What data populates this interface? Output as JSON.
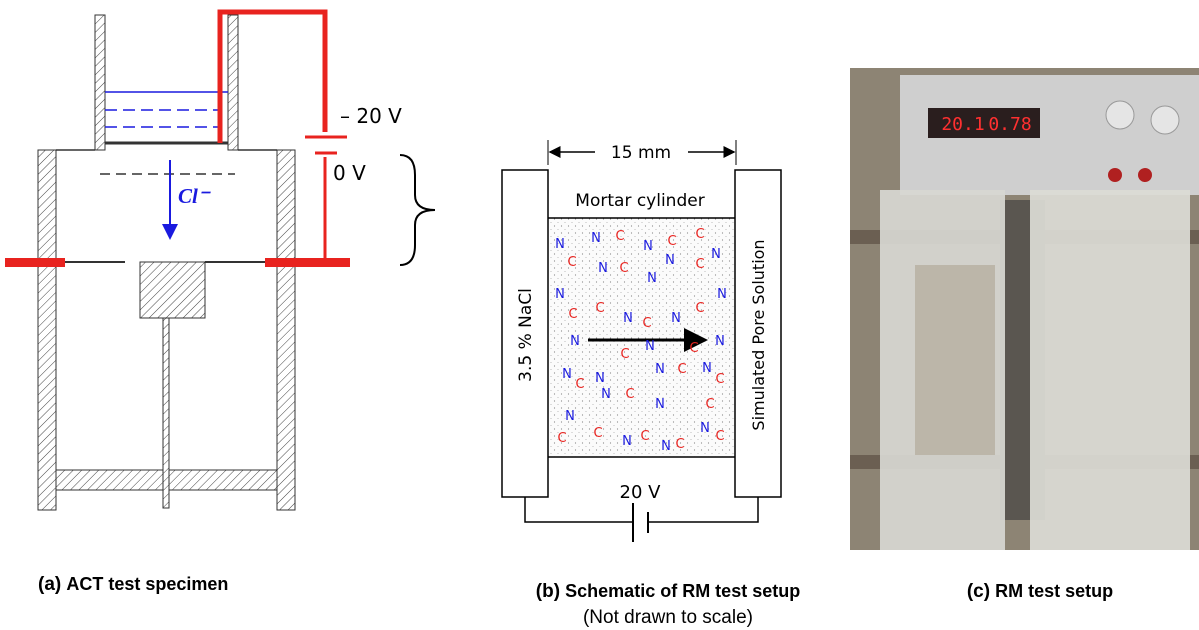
{
  "panel_a": {
    "voltage_high": "– 20 V",
    "voltage_low": "0 V",
    "ion": "Cl⁻",
    "caption": {
      "label": "(a)",
      "title": "ACT test specimen"
    }
  },
  "panel_b": {
    "width_dimension": "15 mm",
    "specimen": "Mortar cylinder",
    "anode_solution": "3.5 % NaCl",
    "cathode_solution": "Simulated Pore Solution",
    "voltage": "20 V",
    "ion_symbols": [
      "N",
      "C"
    ],
    "caption": {
      "label": "(b)",
      "title": "Schematic of RM test setup",
      "note": "(Not drawn to scale)"
    }
  },
  "panel_c": {
    "display_readings": [
      "20.1",
      "0.78"
    ],
    "caption": {
      "label": "(c)",
      "title": "RM test setup"
    }
  }
}
